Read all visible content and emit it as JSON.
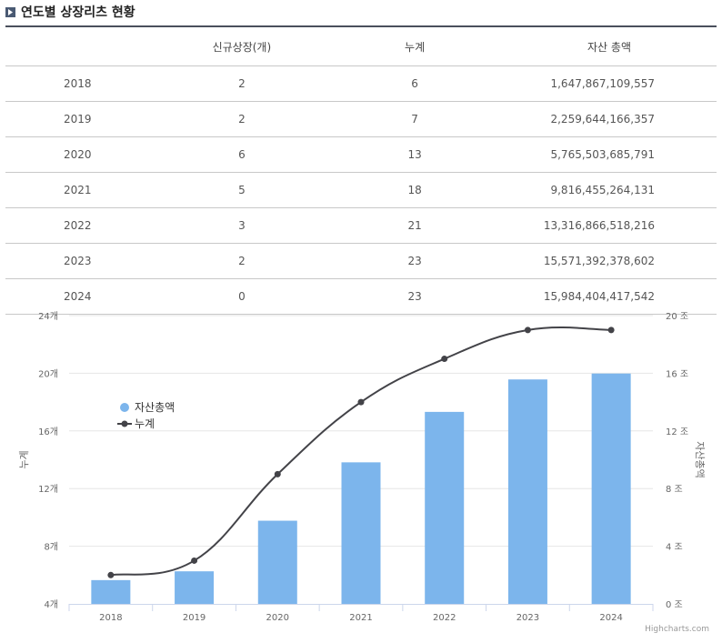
{
  "header": {
    "title": "연도별 상장리츠 현황"
  },
  "table": {
    "columns": [
      "",
      "신규상장(개)",
      "누계",
      "자산 총액"
    ],
    "rows": [
      [
        "2018",
        "2",
        "6",
        "1,647,867,109,557"
      ],
      [
        "2019",
        "2",
        "7",
        "2,259,644,166,357"
      ],
      [
        "2020",
        "6",
        "13",
        "5,765,503,685,791"
      ],
      [
        "2021",
        "5",
        "18",
        "9,816,455,264,131"
      ],
      [
        "2022",
        "3",
        "21",
        "13,316,866,518,216"
      ],
      [
        "2023",
        "2",
        "23",
        "15,571,392,378,602"
      ],
      [
        "2024",
        "0",
        "23",
        "15,984,404,417,542"
      ]
    ]
  },
  "chart_data": {
    "type": "bar",
    "categories": [
      "2018",
      "2019",
      "2020",
      "2021",
      "2022",
      "2023",
      "2024"
    ],
    "series": [
      {
        "name": "자산총액",
        "type": "bar",
        "axis": "right",
        "color": "#7cb5ec",
        "values": [
          1.65,
          2.26,
          5.77,
          9.82,
          13.32,
          15.57,
          15.98
        ]
      },
      {
        "name": "누계",
        "type": "line",
        "axis": "left",
        "color": "#434348",
        "values": [
          6,
          7,
          13,
          18,
          21,
          23,
          23
        ]
      }
    ],
    "left_axis": {
      "title": "누계",
      "range": [
        4,
        24
      ],
      "ticks": [
        "4개",
        "8개",
        "12개",
        "16개",
        "20개",
        "24개"
      ]
    },
    "right_axis": {
      "title": "자산총액",
      "range": [
        0,
        20
      ],
      "ticks": [
        "0 조",
        "4 조",
        "8 조",
        "12 조",
        "16 조",
        "20 조"
      ]
    },
    "legend": {
      "position": "left",
      "items": [
        "자산총액",
        "누계"
      ]
    },
    "credits": "Highcharts.com"
  }
}
